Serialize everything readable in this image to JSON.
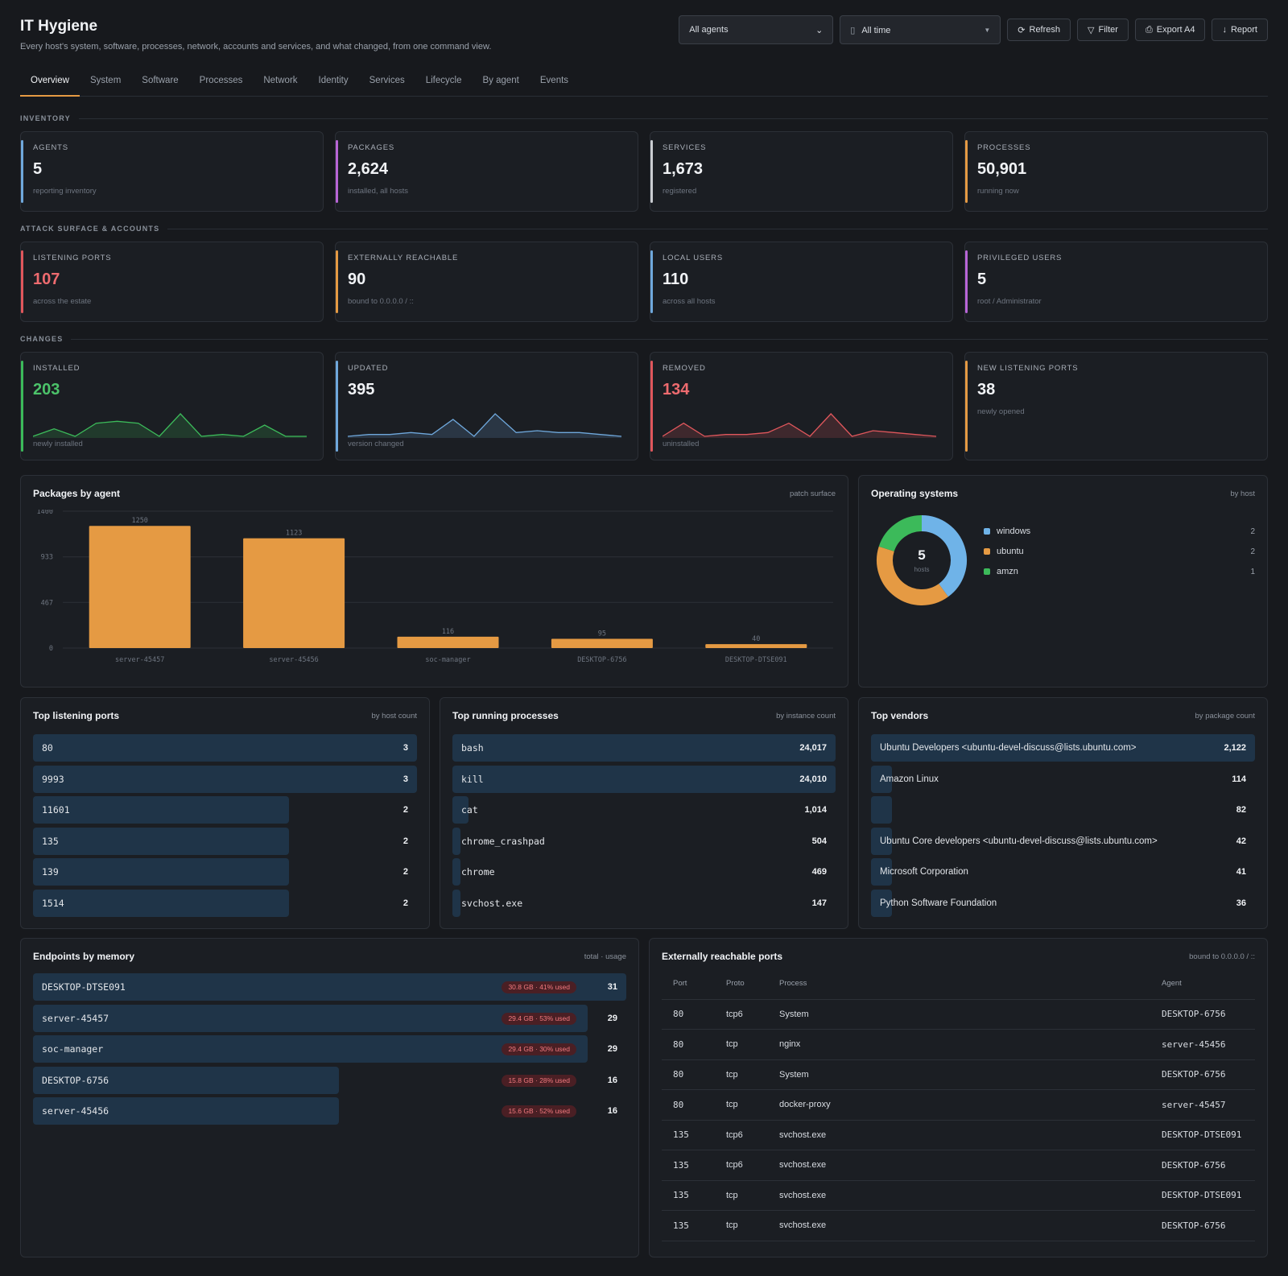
{
  "header": {
    "title": "IT Hygiene",
    "subtitle": "Every host's system, software, processes, network, accounts and services, and what changed, from one command view.",
    "agent_select": "All agents",
    "time_select": "All time",
    "refresh": "Refresh",
    "filter": "Filter",
    "export": "Export A4",
    "report": "Report"
  },
  "tabs": [
    "Overview",
    "System",
    "Software",
    "Processes",
    "Network",
    "Identity",
    "Services",
    "Lifecycle",
    "By agent",
    "Events"
  ],
  "sections": {
    "inventory": "INVENTORY",
    "attack": "ATTACK SURFACE & ACCOUNTS",
    "changes": "CHANGES"
  },
  "inventory": [
    {
      "label": "AGENTS",
      "value": "5",
      "sub": "reporting inventory",
      "color": "#6fa8dc"
    },
    {
      "label": "PACKAGES",
      "value": "2,624",
      "sub": "installed, all hosts",
      "color": "#b865d6"
    },
    {
      "label": "SERVICES",
      "value": "1,673",
      "sub": "registered",
      "color": "#c9ccd1"
    },
    {
      "label": "PROCESSES",
      "value": "50,901",
      "sub": "running now",
      "color": "#e59a43"
    }
  ],
  "attack": [
    {
      "label": "LISTENING PORTS",
      "value": "107",
      "sub": "across the estate",
      "color": "#e0575c",
      "valcolor": "#ee6b6f"
    },
    {
      "label": "EXTERNALLY REACHABLE",
      "value": "90",
      "sub": "bound to 0.0.0.0 / ::",
      "color": "#e59a43",
      "valcolor": "#f1f3f6"
    },
    {
      "label": "LOCAL USERS",
      "value": "110",
      "sub": "across all hosts",
      "color": "#6fa8dc",
      "valcolor": "#f1f3f6"
    },
    {
      "label": "PRIVILEGED USERS",
      "value": "5",
      "sub": "root / Administrator",
      "color": "#b865d6",
      "valcolor": "#f1f3f6"
    }
  ],
  "changes": [
    {
      "label": "INSTALLED",
      "value": "203",
      "sub": "newly installed",
      "color": "#3cba5a",
      "valcolor": "#4cc36a",
      "spark": [
        0,
        4,
        0,
        7,
        8,
        7,
        0,
        12,
        0,
        1,
        0,
        6,
        0,
        0
      ]
    },
    {
      "label": "UPDATED",
      "value": "395",
      "sub": "version changed",
      "color": "#6fa8dc",
      "valcolor": "#f1f3f6",
      "spark": [
        0,
        1,
        1,
        2,
        1,
        9,
        0,
        12,
        2,
        3,
        2,
        2,
        1,
        0
      ]
    },
    {
      "label": "REMOVED",
      "value": "134",
      "sub": "uninstalled",
      "color": "#e0575c",
      "valcolor": "#ee6b6f",
      "spark": [
        0,
        7,
        0,
        1,
        1,
        2,
        7,
        0,
        12,
        0,
        3,
        2,
        1,
        0
      ]
    },
    {
      "label": "NEW LISTENING PORTS",
      "value": "38",
      "sub": "newly opened",
      "color": "#e59a43",
      "valcolor": "#f1f3f6"
    }
  ],
  "packages_chart": {
    "title": "Packages by agent",
    "note": "patch surface"
  },
  "chart_data": {
    "type": "bar",
    "categories": [
      "server-45457",
      "server-45456",
      "soc-manager",
      "DESKTOP-6756",
      "DESKTOP-DTSE091"
    ],
    "values": [
      1250,
      1123,
      116,
      95,
      40
    ],
    "yticks": [
      0,
      467,
      933,
      1400
    ],
    "ylim": [
      0,
      1400
    ],
    "color": "#e59a43"
  },
  "os": {
    "title": "Operating systems",
    "note": "by host",
    "total": "5",
    "total_label": "hosts",
    "items": [
      {
        "name": "windows",
        "count": "2",
        "color": "#6fb3e8"
      },
      {
        "name": "ubuntu",
        "count": "2",
        "color": "#e59a43"
      },
      {
        "name": "amzn",
        "count": "1",
        "color": "#3cba5a"
      }
    ]
  },
  "ports": {
    "title": "Top listening ports",
    "note": "by host count",
    "max": 3,
    "items": [
      {
        "name": "80",
        "count": "3",
        "n": 3
      },
      {
        "name": "9993",
        "count": "3",
        "n": 3
      },
      {
        "name": "11601",
        "count": "2",
        "n": 2
      },
      {
        "name": "135",
        "count": "2",
        "n": 2
      },
      {
        "name": "139",
        "count": "2",
        "n": 2
      },
      {
        "name": "1514",
        "count": "2",
        "n": 2
      }
    ]
  },
  "procs": {
    "title": "Top running processes",
    "note": "by instance count",
    "max": 24017,
    "items": [
      {
        "name": "bash",
        "count": "24,017",
        "n": 24017
      },
      {
        "name": "kill",
        "count": "24,010",
        "n": 24010
      },
      {
        "name": "cat",
        "count": "1,014",
        "n": 1014
      },
      {
        "name": "chrome_crashpad",
        "count": "504",
        "n": 504
      },
      {
        "name": "chrome",
        "count": "469",
        "n": 469
      },
      {
        "name": "svchost.exe",
        "count": "147",
        "n": 147
      }
    ]
  },
  "vendors": {
    "title": "Top vendors",
    "note": "by package count",
    "max": 2122,
    "items": [
      {
        "name": "Ubuntu Developers <ubuntu-devel-discuss@lists.ubuntu.com>",
        "count": "2,122",
        "n": 2122
      },
      {
        "name": "Amazon Linux",
        "count": "114",
        "n": 114
      },
      {
        "name": "",
        "count": "82",
        "n": 82
      },
      {
        "name": "Ubuntu Core developers <ubuntu-devel-discuss@lists.ubuntu.com>",
        "count": "42",
        "n": 42
      },
      {
        "name": "Microsoft Corporation",
        "count": "41",
        "n": 41
      },
      {
        "name": "Python Software Foundation",
        "count": "36",
        "n": 36
      }
    ]
  },
  "memory": {
    "title": "Endpoints by memory",
    "note": "total · usage",
    "max": 31,
    "items": [
      {
        "name": "DESKTOP-DTSE091",
        "badge": "30.8 GB · 41% used",
        "count": "31",
        "n": 31
      },
      {
        "name": "server-45457",
        "badge": "29.4 GB · 53% used",
        "count": "29",
        "n": 29
      },
      {
        "name": "soc-manager",
        "badge": "29.4 GB · 30% used",
        "count": "29",
        "n": 29
      },
      {
        "name": "DESKTOP-6756",
        "badge": "15.8 GB · 28% used",
        "count": "16",
        "n": 16
      },
      {
        "name": "server-45456",
        "badge": "15.6 GB · 52% used",
        "count": "16",
        "n": 16
      }
    ]
  },
  "ext": {
    "title": "Externally reachable ports",
    "note": "bound to 0.0.0.0 / ::",
    "columns": [
      "Port",
      "Proto",
      "Process",
      "Agent"
    ],
    "rows": [
      [
        "80",
        "tcp6",
        "System",
        "DESKTOP-6756"
      ],
      [
        "80",
        "tcp",
        "nginx",
        "server-45456"
      ],
      [
        "80",
        "tcp",
        "System",
        "DESKTOP-6756"
      ],
      [
        "80",
        "tcp",
        "docker-proxy",
        "server-45457"
      ],
      [
        "135",
        "tcp6",
        "svchost.exe",
        "DESKTOP-DTSE091"
      ],
      [
        "135",
        "tcp6",
        "svchost.exe",
        "DESKTOP-6756"
      ],
      [
        "135",
        "tcp",
        "svchost.exe",
        "DESKTOP-DTSE091"
      ],
      [
        "135",
        "tcp",
        "svchost.exe",
        "DESKTOP-6756"
      ]
    ]
  }
}
